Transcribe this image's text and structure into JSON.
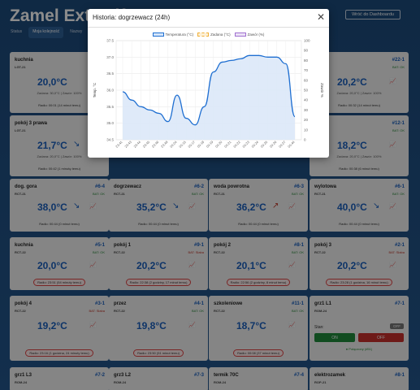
{
  "app": {
    "title": "Zamel Exta Life",
    "dashboard_button": "Wróć do Dashboardu",
    "tabs": [
      "Status",
      "Moja kolejność",
      "Nazwy"
    ]
  },
  "modal": {
    "title": "Historia: dogrzewacz (24h)",
    "close_icon": "close-icon"
  },
  "chart_data": {
    "type": "line",
    "legend": [
      "Temperatura (°C)",
      "Zadana (°C)",
      "Zawór (%)"
    ],
    "x": [
      "23:41",
      "23:43",
      "23:44",
      "23:45",
      "23:46",
      "23:49",
      "00:04",
      "00:15",
      "00:17",
      "00:18",
      "00:19",
      "00:20",
      "00:21",
      "00:22",
      "00:23",
      "00:24",
      "00:25",
      "00:26",
      "00:27",
      "00:44"
    ],
    "series": [
      {
        "name": "Temperatura (°C)",
        "color": "#1f6fd1",
        "values": [
          35.95,
          35.7,
          35.5,
          35.4,
          35.3,
          35.05,
          35.85,
          35.15,
          34.95,
          35.5,
          36.55,
          36.85,
          36.9,
          36.95,
          37.05,
          37.05,
          37.0,
          37.0,
          36.8,
          35.2
        ]
      }
    ],
    "ylabel": "Temp. °C",
    "ylabel_right": "Zawór %",
    "ylim": [
      34.5,
      37.5
    ],
    "yticks": [
      34.5,
      35.0,
      35.5,
      36.0,
      36.5,
      37.0,
      37.5
    ],
    "ylim_right": [
      0,
      100
    ],
    "yticks_right": [
      0,
      10,
      20,
      30,
      40,
      50,
      60,
      70,
      80,
      90,
      100
    ],
    "colors": {
      "zadana": "#f0b03a",
      "zawor": "#a070d0"
    }
  },
  "cards": [
    {
      "name": "kuchnia",
      "id": "",
      "type": "LGT-21",
      "bat": "",
      "temp": "20,0°C",
      "arrow": "",
      "radio": "Radio: 00:01 (14 minut temu)",
      "sub": "Zadana: 30,0°C | Zawór: 100%",
      "warn": false
    },
    {
      "name": "",
      "id": "#22-1",
      "type": "",
      "bat": "BAT: OK",
      "temp": "20,2°C",
      "arrow": "",
      "radio": "Radio: 00:32 (14 minut temu)",
      "sub": "Zadana: 20,0°C | Zawór: 100%",
      "warn": false
    },
    {
      "name": "pokój 3 prawa",
      "id": "",
      "type": "LGT-21",
      "bat": "",
      "temp": "21,7°C",
      "arrow": "↘",
      "radio": "Radio: 00:42 (1 minutę temu)",
      "sub": "Zadana: 20,0°C | Zawór: 100%",
      "warn": false
    },
    {
      "name": "",
      "id": "#12-1",
      "type": "",
      "bat": "BAT: OK",
      "temp": "18,2°C",
      "arrow": "",
      "radio": "Radio: 00:38 (6 minut temu)",
      "sub": "Zadana: 20,0°C | Zawór: 100%",
      "warn": false
    },
    {
      "name": "dog. gora",
      "id": "#6-4",
      "type": "RCT-21",
      "bat": "BAT: OK",
      "temp": "38,0°C",
      "arrow": "↘",
      "radio": "Radio: 00:44 (0 minut temu)",
      "sub": "",
      "warn": false
    },
    {
      "name": "dogrzewacz",
      "id": "#6-2",
      "type": "RCT-21",
      "bat": "BAT: OK",
      "temp": "35,2°C",
      "arrow": "↘",
      "radio": "Radio: 00:44 (0 minut temu)",
      "sub": "",
      "warn": false
    },
    {
      "name": "woda powrotna",
      "id": "#6-3",
      "type": "RCT-21",
      "bat": "BAT: OK",
      "temp": "36,2°C",
      "arrow": "↗",
      "radio": "Radio: 00:44 (0 minut temu)",
      "sub": "",
      "warn": false
    },
    {
      "name": "wylotowa",
      "id": "#6-1",
      "type": "RCT-21",
      "bat": "BAT: OK",
      "temp": "40,0°C",
      "arrow": "↘",
      "radio": "Radio: 00:44 (0 minut temu)",
      "sub": "",
      "warn": false
    },
    {
      "name": "kuchnia",
      "id": "#5-1",
      "type": "RCT-22",
      "bat": "BAT: OK",
      "temp": "20,0°C",
      "arrow": "",
      "radio": "Radio: 23:51 (54 minuty temu)",
      "sub": "",
      "warn": true
    },
    {
      "name": "pokój 1",
      "id": "#9-1",
      "type": "RCT-22",
      "bat": "BAT: Słaba",
      "temp": "20,2°C",
      "arrow": "",
      "radio": "Radio: 22:38 (2 godziny, 17 minut temu)",
      "sub": "",
      "warn": true
    },
    {
      "name": "pokój 2",
      "id": "#8-1",
      "type": "RCT-22",
      "bat": "BAT: OK",
      "temp": "20,1°C",
      "arrow": "",
      "radio": "Radio: 22:56 (2 godziny, 8 minut temu)",
      "sub": "",
      "warn": true
    },
    {
      "name": "pokój 3",
      "id": "#2-1",
      "type": "RCT-22",
      "bat": "BAT: Słaba",
      "temp": "20,2°C",
      "arrow": "",
      "radio": "Radio: 23:28 (1 godzina, 16 minut temu)",
      "sub": "",
      "warn": true
    },
    {
      "name": "pokój 4",
      "id": "#3-1",
      "type": "RCT-22",
      "bat": "BAT: Słaba",
      "temp": "19,2°C",
      "arrow": "",
      "radio": "Radio: 23:16 (1 godzina, 24 minuty temu)",
      "sub": "",
      "warn": true
    },
    {
      "name": "przez",
      "id": "#4-1",
      "type": "RCT-22",
      "bat": "BAT: OK",
      "temp": "19,8°C",
      "arrow": "",
      "radio": "Radio: 23:50 (51 minut temu)",
      "sub": "",
      "warn": true
    },
    {
      "name": "szkoleniowe",
      "id": "#11-1",
      "type": "RCT-22",
      "bat": "BAT: OK",
      "temp": "18,7°C",
      "arrow": "",
      "radio": "Radio: 00:08 (37 minut temu)",
      "sub": "",
      "warn": true
    },
    {
      "name": "grz1 L1",
      "id": "#7-1",
      "type": "ROM-24",
      "bat": "",
      "temp": "",
      "arrow": "",
      "radio": "",
      "sub": "",
      "warn": false
    },
    {
      "name": "grz1 L3",
      "id": "#7-2",
      "type": "ROM-24",
      "bat": "",
      "temp": "",
      "arrow": "",
      "radio": "",
      "sub": "",
      "warn": false
    },
    {
      "name": "grz3 L2",
      "id": "#7-3",
      "type": "ROM-24",
      "bat": "",
      "temp": "",
      "arrow": "",
      "radio": "",
      "sub": "",
      "warn": false
    },
    {
      "name": "termik 70C",
      "id": "#7-4",
      "type": "ROM-24",
      "bat": "",
      "temp": "",
      "arrow": "",
      "radio": "",
      "sub": "",
      "warn": false
    },
    {
      "name": "elektrozamek",
      "id": "#8-1",
      "type": "ROP-21",
      "bat": "",
      "temp": "",
      "arrow": "",
      "radio": "",
      "sub": "",
      "warn": false
    }
  ],
  "relay": {
    "stan": "Stan:",
    "state": "OFF",
    "on": "ON",
    "off": "OFF",
    "polaczony": "● Połączony (#51)"
  }
}
